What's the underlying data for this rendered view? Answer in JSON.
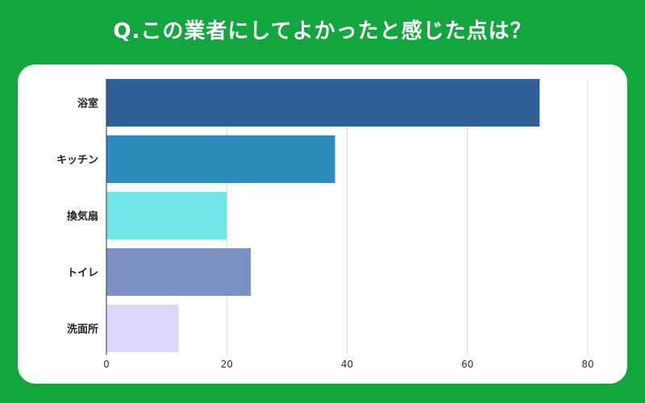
{
  "title": "Q.この業者にしてよかったと感じた点は？",
  "chart_data": {
    "type": "bar",
    "orientation": "horizontal",
    "categories": [
      "浴室",
      "キッチン",
      "換気扇",
      "トイレ",
      "洗面所"
    ],
    "values": [
      72,
      38,
      20,
      24,
      12
    ],
    "colors": [
      "#2e5f98",
      "#2e8bbd",
      "#6ee6e8",
      "#7b91c4",
      "#dcd6fc"
    ],
    "xlim": [
      0,
      80
    ],
    "xticks": [
      0,
      20,
      40,
      60,
      80
    ],
    "grid": true
  }
}
